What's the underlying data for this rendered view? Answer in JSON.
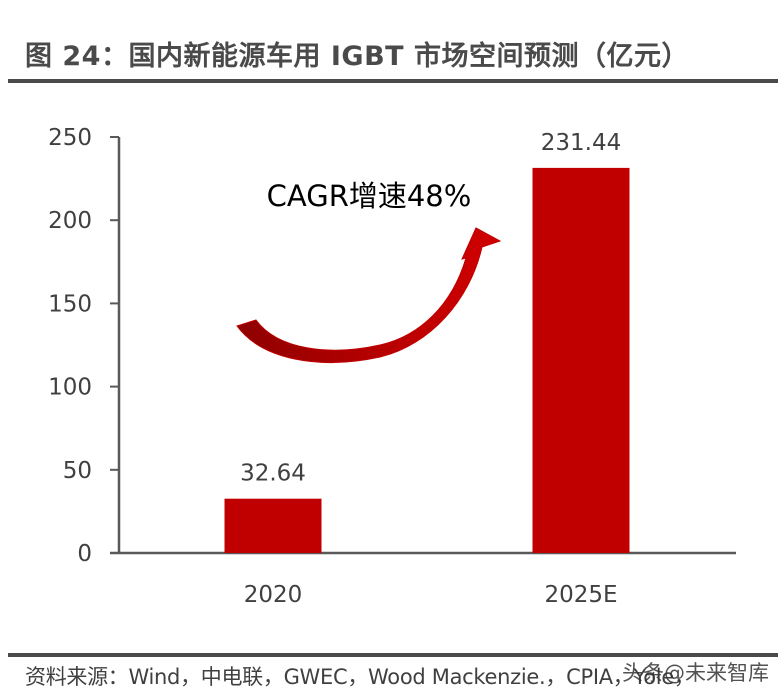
{
  "title": "图 24：国内新能源车用 IGBT 市场空间预测（亿元）",
  "source": "资料来源：Wind，中电联，GWEC，Wood Mackenzie.，CPIA，Yole，",
  "watermark": "头条@未来智库",
  "colors": {
    "bar": "#c00000",
    "axis": "#595959",
    "rule": "#4a4a4a",
    "arrow": "#c00000",
    "arrow_dark": "#9b0000"
  },
  "chart_data": {
    "type": "bar",
    "title": "国内新能源车用 IGBT 市场空间预测（亿元）",
    "xlabel": "",
    "ylabel": "亿元",
    "categories": [
      "2020",
      "2025E"
    ],
    "values": [
      32.64,
      231.44
    ],
    "data_labels": [
      "32.64",
      "231.44"
    ],
    "ylim": [
      0,
      250
    ],
    "yticks": [
      0,
      50,
      100,
      150,
      200,
      250
    ],
    "ytick_labels": [
      "0",
      "50",
      "100",
      "150",
      "200",
      "250"
    ],
    "grid": false,
    "legend": null,
    "annotations": [
      {
        "text": "CAGR增速48%",
        "type": "curved-arrow",
        "from": "2020",
        "to": "2025E"
      }
    ]
  }
}
